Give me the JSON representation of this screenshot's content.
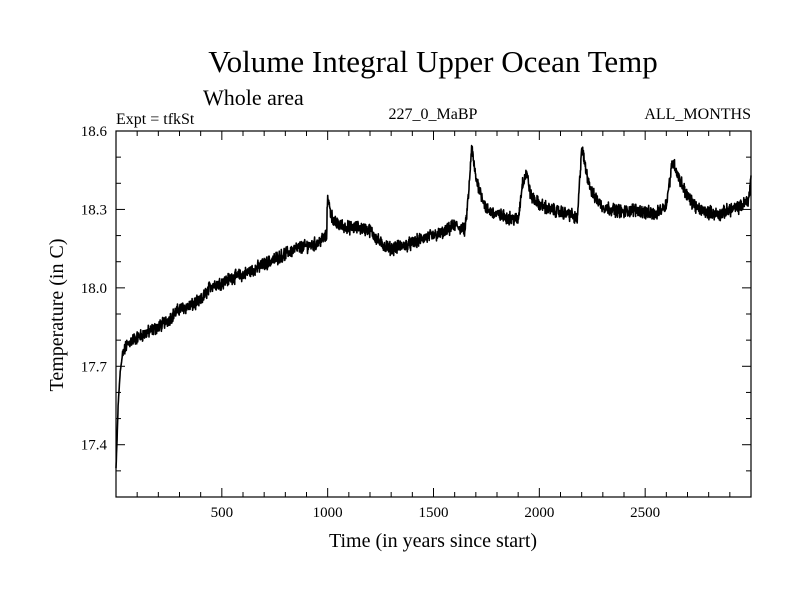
{
  "chart_data": {
    "type": "line",
    "title": "Volume Integral Upper Ocean Temp",
    "subtitle": "Whole area",
    "experiment_label": "Expt = tfkSt",
    "center_label": "227_0_MaBP",
    "right_label": "ALL_MONTHS",
    "xlabel": "Time (in years since start)",
    "ylabel": "Temperature (in C)",
    "xlim": [
      0,
      3000
    ],
    "ylim": [
      17.2,
      18.6
    ],
    "xticks_major": [
      500,
      1000,
      1500,
      2000,
      2500
    ],
    "xtick_labels": [
      "500",
      "1000",
      "1500",
      "2000",
      "2500"
    ],
    "xticks_minor_step": 100,
    "yticks_major": [
      17.4,
      17.7,
      18.0,
      18.3,
      18.6
    ],
    "ytick_labels": [
      "17.4",
      "17.7",
      "18.0",
      "18.3",
      "18.6"
    ],
    "yticks_minor_step": 0.1,
    "grid": false,
    "series": [
      {
        "name": "Volume integral upper ocean temperature",
        "color": "#000000",
        "x": [
          0,
          5,
          10,
          20,
          30,
          50,
          75,
          100,
          150,
          200,
          250,
          300,
          350,
          400,
          450,
          500,
          550,
          600,
          650,
          700,
          750,
          800,
          850,
          900,
          950,
          995,
          1000,
          1010,
          1030,
          1060,
          1100,
          1150,
          1200,
          1250,
          1300,
          1350,
          1400,
          1450,
          1500,
          1550,
          1600,
          1650,
          1670,
          1680,
          1700,
          1750,
          1800,
          1850,
          1900,
          1920,
          1940,
          1960,
          2000,
          2050,
          2100,
          2150,
          2180,
          2200,
          2220,
          2250,
          2300,
          2350,
          2400,
          2450,
          2500,
          2550,
          2600,
          2630,
          2660,
          2700,
          2750,
          2800,
          2850,
          2900,
          2950,
          2990,
          3000
        ],
        "y": [
          17.31,
          17.42,
          17.55,
          17.68,
          17.74,
          17.78,
          17.8,
          17.81,
          17.83,
          17.85,
          17.88,
          17.92,
          17.93,
          17.95,
          18.01,
          18.02,
          18.04,
          18.05,
          18.07,
          18.09,
          18.11,
          18.13,
          18.15,
          18.16,
          18.17,
          18.2,
          18.36,
          18.3,
          18.25,
          18.24,
          18.23,
          18.23,
          18.22,
          18.17,
          18.15,
          18.16,
          18.17,
          18.19,
          18.2,
          18.21,
          18.24,
          18.22,
          18.4,
          18.54,
          18.42,
          18.3,
          18.28,
          18.27,
          18.26,
          18.4,
          18.44,
          18.35,
          18.32,
          18.3,
          18.29,
          18.28,
          18.26,
          18.54,
          18.45,
          18.36,
          18.31,
          18.3,
          18.29,
          18.3,
          18.29,
          18.28,
          18.32,
          18.49,
          18.42,
          18.35,
          18.3,
          18.29,
          18.28,
          18.3,
          18.31,
          18.34,
          18.43
        ]
      }
    ]
  }
}
